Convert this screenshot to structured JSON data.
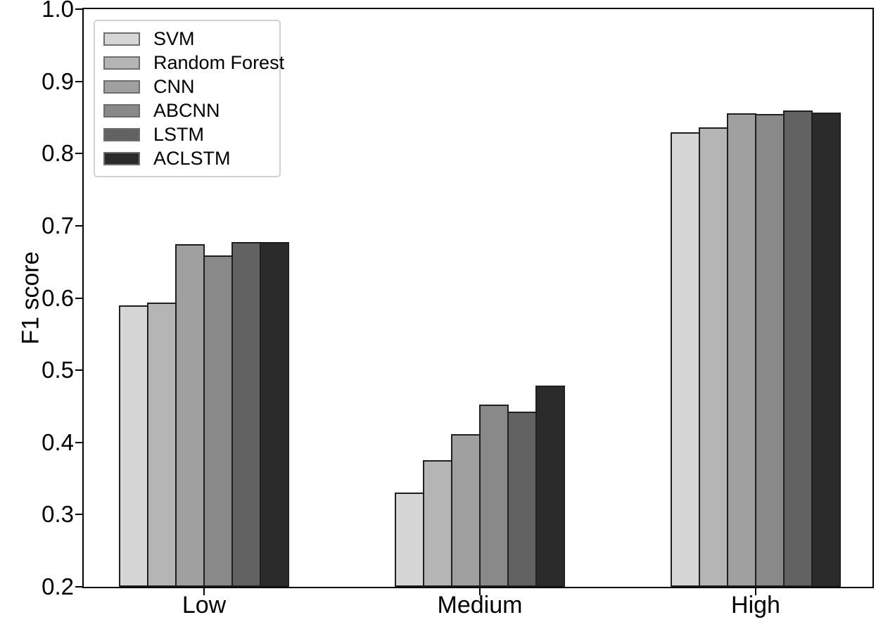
{
  "chart_data": {
    "type": "bar",
    "title": "",
    "ylabel": "F1 score",
    "xlabel": "",
    "categories": [
      "Low",
      "Medium",
      "High"
    ],
    "series": [
      {
        "name": "SVM",
        "color": "#d6d6d6",
        "values": [
          0.59,
          0.331,
          0.829
        ]
      },
      {
        "name": "Random Forest",
        "color": "#b5b5b5",
        "values": [
          0.594,
          0.375,
          0.836
        ]
      },
      {
        "name": "CNN",
        "color": "#a0a0a0",
        "values": [
          0.675,
          0.411,
          0.856
        ]
      },
      {
        "name": "ABCNN",
        "color": "#898989",
        "values": [
          0.659,
          0.452,
          0.855
        ]
      },
      {
        "name": "LSTM",
        "color": "#626262",
        "values": [
          0.677,
          0.443,
          0.86
        ]
      },
      {
        "name": "ACLSTM",
        "color": "#2b2b2b",
        "values": [
          0.677,
          0.479,
          0.857
        ]
      }
    ],
    "ylim": [
      0.2,
      1.0
    ],
    "yticks": [
      0.2,
      0.3,
      0.4,
      0.5,
      0.6,
      0.7,
      0.8,
      0.9,
      1.0
    ],
    "grid": false,
    "legend_position": "upper-left",
    "bar_edge_color": "#1f1f1f",
    "axis_color": "#000000"
  }
}
